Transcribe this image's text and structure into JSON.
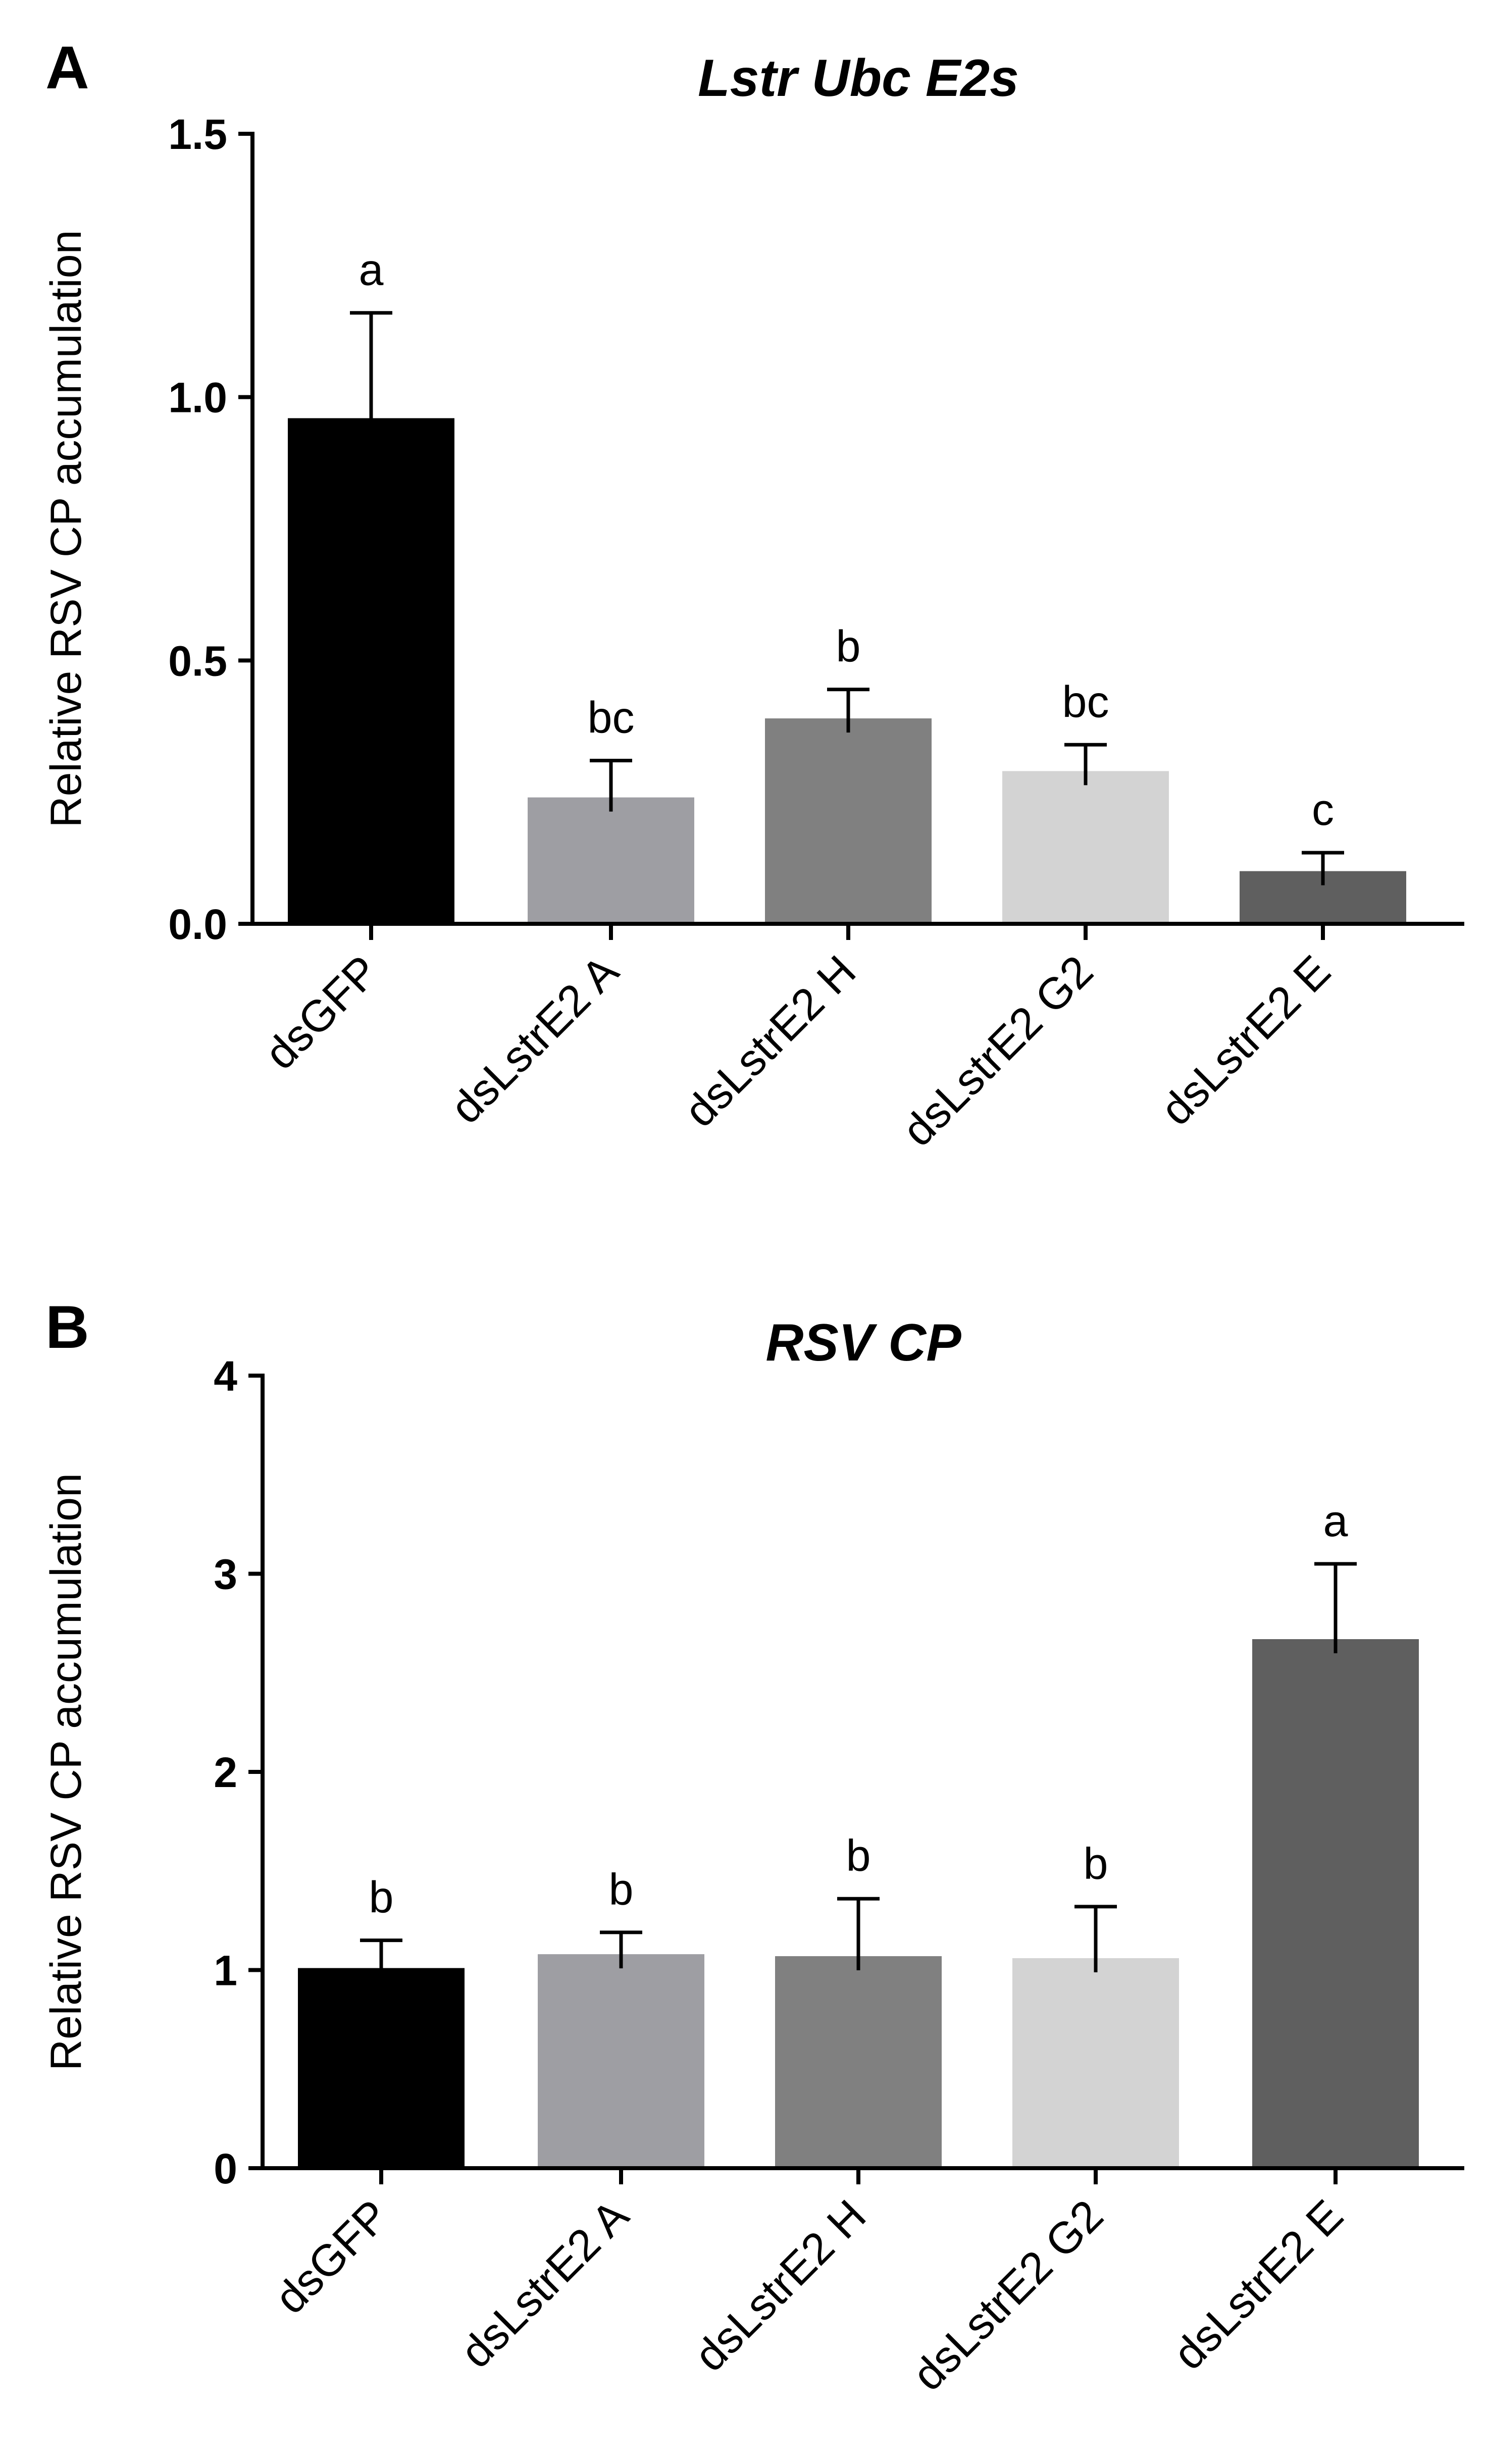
{
  "figure": {
    "panels": [
      "A",
      "B"
    ]
  },
  "chart_data": [
    {
      "panel": "A",
      "type": "bar",
      "title": "Lstr Ubc E2s",
      "xlabel": "",
      "ylabel": "Relative RSV CP accumulation",
      "ylim": [
        0,
        1.5
      ],
      "yticks": [
        "0.0",
        "0.5",
        "1.0",
        "1.5"
      ],
      "ytick_values": [
        0,
        0.5,
        1.0,
        1.5
      ],
      "categories": [
        "dsGFP",
        "dsLstrE2 A",
        "dsLstrE2 H",
        "dsLstrE2 G2",
        "dsLstrE2 E"
      ],
      "values": [
        0.96,
        0.24,
        0.39,
        0.29,
        0.1
      ],
      "errors": [
        0.2,
        0.07,
        0.055,
        0.05,
        0.035
      ],
      "significance": [
        "a",
        "bc",
        "b",
        "bc",
        "c"
      ],
      "colors": [
        "#000000",
        "#9e9ea3",
        "#808080",
        "#d3d3d3",
        "#5f5f5f"
      ]
    },
    {
      "panel": "B",
      "type": "bar",
      "title": "RSV CP",
      "xlabel": "",
      "ylabel": "Relative RSV CP accumulation",
      "ylim": [
        0,
        4
      ],
      "yticks": [
        "0",
        "1",
        "2",
        "3",
        "4"
      ],
      "ytick_values": [
        0,
        1,
        2,
        3,
        4
      ],
      "categories": [
        "dsGFP",
        "dsLstrE2 A",
        "dsLstrE2 H",
        "dsLstrE2 G2",
        "dsLstrE2 E"
      ],
      "values": [
        1.01,
        1.08,
        1.07,
        1.06,
        2.67
      ],
      "errors": [
        0.14,
        0.11,
        0.29,
        0.26,
        0.38
      ],
      "significance": [
        "b",
        "b",
        "b",
        "b",
        "a"
      ],
      "colors": [
        "#000000",
        "#9e9ea3",
        "#808080",
        "#d3d3d3",
        "#5f5f5f"
      ]
    }
  ]
}
